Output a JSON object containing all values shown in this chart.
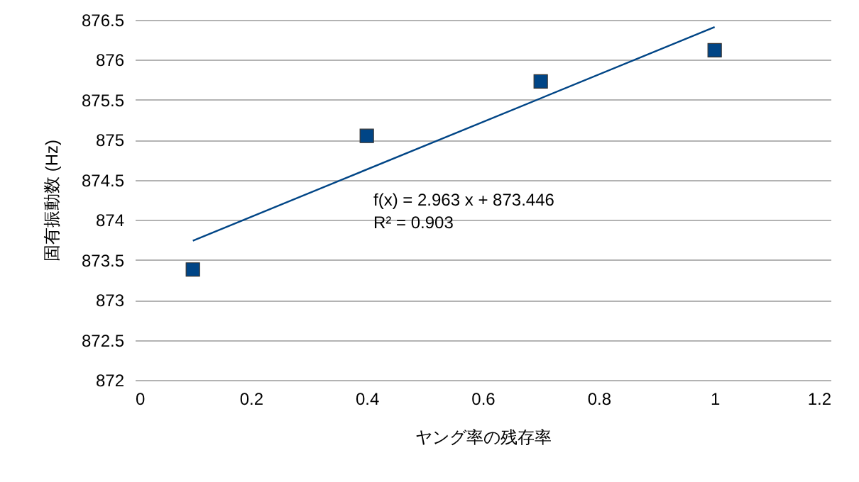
{
  "chart_data": {
    "type": "scatter",
    "xlabel": "ヤング率の残存率",
    "ylabel": "固有振動数 (Hz)",
    "xlim": [
      0,
      1.2
    ],
    "xticks": [
      0,
      0.2,
      0.4,
      0.6,
      0.8,
      1,
      1.2
    ],
    "ylim": [
      872,
      876.5
    ],
    "yticks": [
      872,
      872.5,
      873,
      873.5,
      874,
      874.5,
      875,
      875.5,
      876,
      876.5
    ],
    "grid": "y",
    "marker": "square",
    "series": [
      {
        "type": "scatter",
        "color": "#004586",
        "x": [
          0.1,
          0.4,
          0.7,
          1.0
        ],
        "values": [
          873.38,
          875.05,
          875.73,
          876.12
        ]
      },
      {
        "type": "line",
        "color": "#004586",
        "marker": "none",
        "x": [
          0.1,
          1.0
        ],
        "values": [
          873.74,
          876.41
        ]
      }
    ],
    "annotations": [
      "f(x) = 2.963 x + 873.446",
      "R² = 0.903"
    ]
  }
}
